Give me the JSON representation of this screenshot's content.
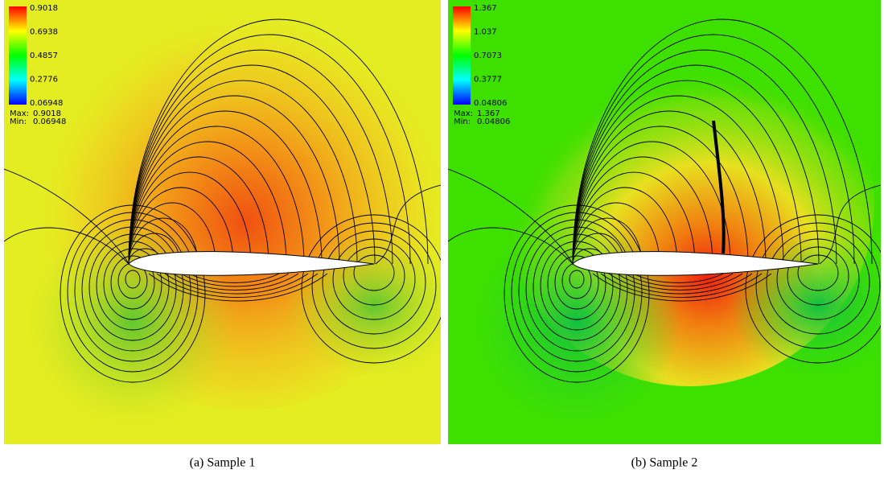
{
  "panels": [
    {
      "caption": "(a) Sample 1",
      "colorbar": {
        "ticks": [
          "0.9018",
          "0.6938",
          "0.4857",
          "0.2776",
          "0.06948"
        ],
        "max_label": "Max:",
        "max": "0.9018",
        "min_label": "Min:",
        "min": "0.06948"
      }
    },
    {
      "caption": "(b) Sample 2",
      "colorbar": {
        "ticks": [
          "1.367",
          "1.037",
          "0.7073",
          "0.3777",
          "0.04806"
        ],
        "max_label": "Max:",
        "max": "1.367",
        "min_label": "Min:",
        "min": "0.04806"
      }
    }
  ]
}
